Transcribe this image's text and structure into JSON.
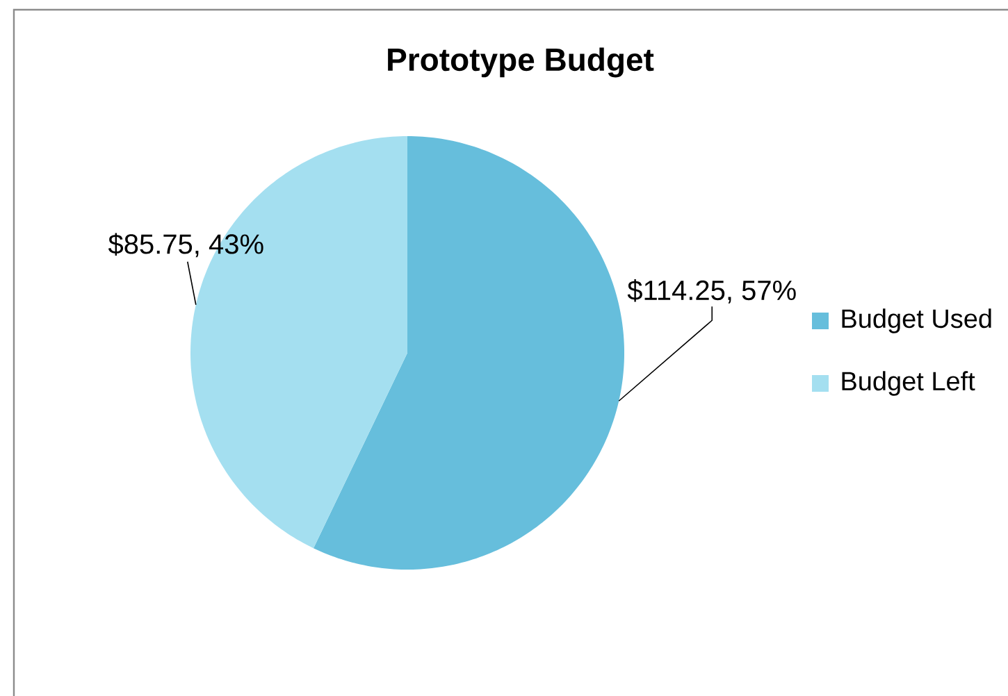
{
  "chart_data": {
    "type": "pie",
    "title": "Prototype Budget",
    "categories": [
      "Budget Used",
      "Budget Left"
    ],
    "values": [
      114.25,
      85.75
    ],
    "colors": [
      "#66bedc",
      "#a4dff0"
    ],
    "value_labels": [
      "$114.25, 57%",
      "$85.75, 43%"
    ],
    "legend": "right"
  }
}
